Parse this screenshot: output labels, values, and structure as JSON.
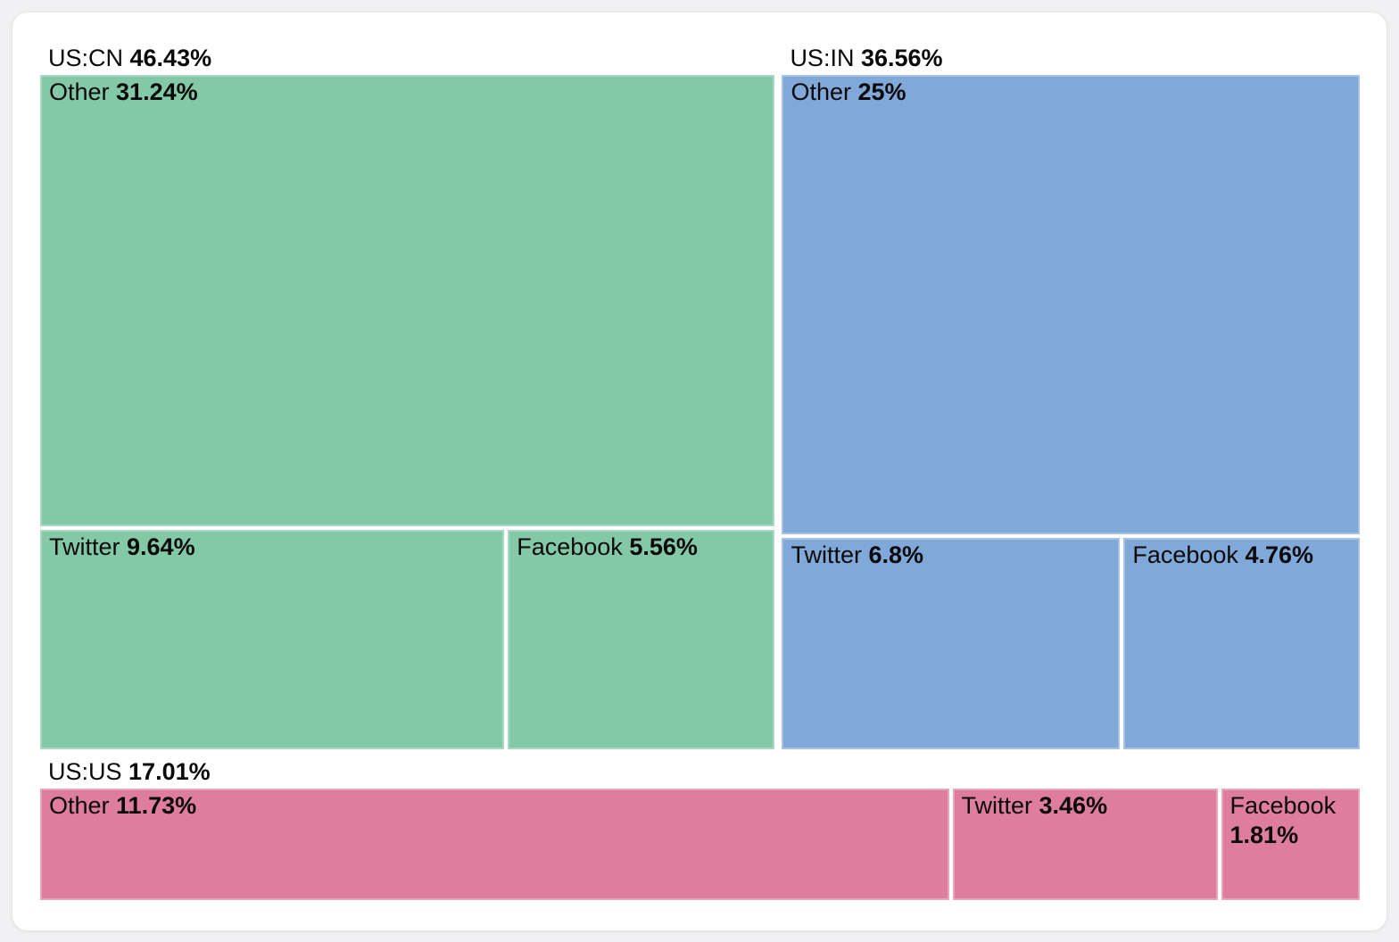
{
  "page": {
    "background_color": "#f1f1f3",
    "card_background_color": "#ffffff"
  },
  "chart_data": {
    "type": "treemap",
    "unit": "%",
    "legend": "none",
    "groups": [
      {
        "label": "US:CN",
        "value": 46.43,
        "value_label": "46.43%",
        "color": "#83c9a8",
        "children": [
          {
            "label": "Other",
            "value": 31.24,
            "value_label": "31.24%"
          },
          {
            "label": "Twitter",
            "value": 9.64,
            "value_label": "9.64%"
          },
          {
            "label": "Facebook",
            "value": 5.56,
            "value_label": "5.56%"
          }
        ]
      },
      {
        "label": "US:IN",
        "value": 36.56,
        "value_label": "36.56%",
        "color": "#80a8d8",
        "children": [
          {
            "label": "Other",
            "value": 25,
            "value_label": "25%"
          },
          {
            "label": "Twitter",
            "value": 6.8,
            "value_label": "6.8%"
          },
          {
            "label": "Facebook",
            "value": 4.76,
            "value_label": "4.76%"
          }
        ]
      },
      {
        "label": "US:US",
        "value": 17.01,
        "value_label": "17.01%",
        "color": "#de7d9e",
        "children": [
          {
            "label": "Other",
            "value": 11.73,
            "value_label": "11.73%"
          },
          {
            "label": "Twitter",
            "value": 3.46,
            "value_label": "3.46%"
          },
          {
            "label": "Facebook",
            "value": 1.81,
            "value_label": "1.81%"
          }
        ]
      }
    ]
  }
}
